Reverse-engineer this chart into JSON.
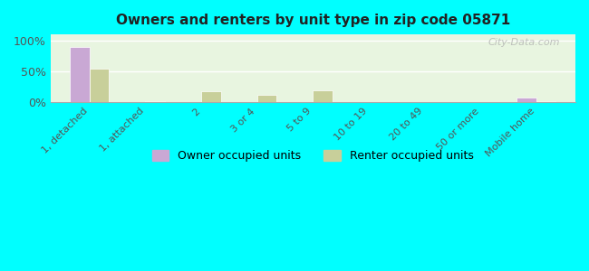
{
  "title": "Owners and renters by unit type in zip code 05871",
  "categories": [
    "1, detached",
    "1, attached",
    "2",
    "3 or 4",
    "5 to 9",
    "10 to 19",
    "20 to 49",
    "50 or more",
    "Mobile home"
  ],
  "owner_values": [
    90,
    0,
    0,
    0,
    0,
    0,
    0,
    0,
    8
  ],
  "renter_values": [
    55,
    1,
    18,
    12,
    19,
    0,
    0,
    0,
    1
  ],
  "owner_color": "#c9a8d4",
  "renter_color": "#c8cf9a",
  "background_color": "#00ffff",
  "plot_bg_top": "#e8f5e0",
  "plot_bg_bottom": "#f5faf0",
  "ylabel_ticks": [
    "0%",
    "50%",
    "100%"
  ],
  "ytick_vals": [
    0,
    50,
    100
  ],
  "ylim": [
    0,
    110
  ],
  "bar_width": 0.35,
  "legend_owner": "Owner occupied units",
  "legend_renter": "Renter occupied units",
  "watermark": "City-Data.com"
}
